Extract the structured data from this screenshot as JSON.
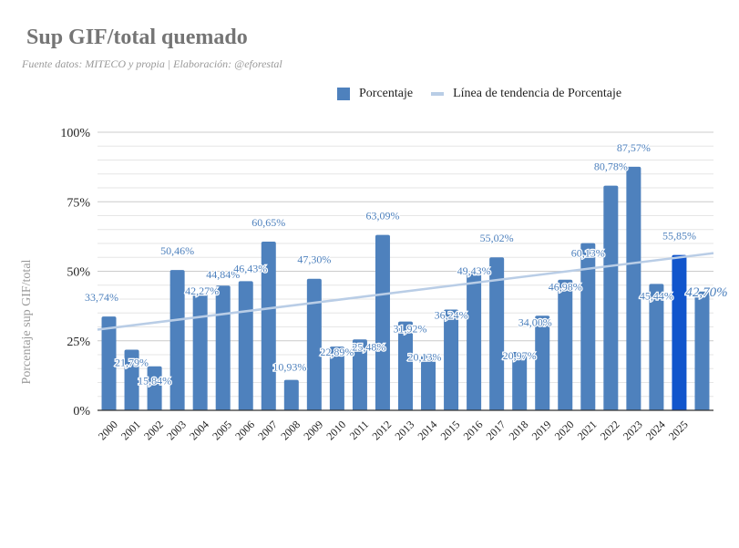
{
  "chart_data": {
    "type": "bar",
    "title": "Sup GIF/total quemado",
    "subtitle": "Fuente datos: MITECO y propia | Elaboración: @eforestal",
    "xlabel": "",
    "ylabel": "Porcentaje sup GIF/total",
    "ylim": [
      0,
      100
    ],
    "yticks": [
      "0%",
      "25%",
      "50%",
      "75%",
      "100%"
    ],
    "grid": true,
    "legend_position": "top",
    "legend": [
      "Porcentaje",
      "Línea de tendencia de Porcentaje"
    ],
    "categories": [
      "2000",
      "2001",
      "2002",
      "2003",
      "2004",
      "2005",
      "2006",
      "2007",
      "2008",
      "2009",
      "2010",
      "2011",
      "2012",
      "2013",
      "2014",
      "2015",
      "2016",
      "2017",
      "2018",
      "2019",
      "2020",
      "2021",
      "2022",
      "2023",
      "2024",
      "2025",
      ""
    ],
    "series": [
      {
        "name": "Porcentaje",
        "values": [
          33.74,
          21.79,
          15.84,
          50.46,
          42.27,
          44.84,
          46.43,
          60.65,
          10.93,
          47.3,
          22.89,
          25.48,
          63.09,
          31.92,
          20.13,
          36.24,
          49.43,
          55.02,
          20.97,
          34.0,
          46.98,
          60.13,
          80.78,
          87.57,
          45.44,
          55.85,
          42.7
        ],
        "labels": [
          "33,74%",
          "21,79%",
          "15,84%",
          "50,46%",
          "42,27%",
          "44,84%",
          "46,43%",
          "60,65%",
          "10,93%",
          "47,30%",
          "22,89%",
          "25,48%",
          "63,09%",
          "31,92%",
          "20,13%",
          "36,24%",
          "49,43%",
          "55,02%",
          "20,97%",
          "34,00%",
          "46,98%",
          "60,13%",
          "80,78%",
          "87,57%",
          "45,44%",
          "55,85%",
          "42,70%"
        ]
      }
    ],
    "trendline": {
      "name": "Línea de tendencia de Porcentaje",
      "start": 29.0,
      "end": 56.5
    },
    "colors": {
      "bar": "#4e81bd",
      "highlight_bar": "#1155cc",
      "trend": "#b9cde6",
      "label": "#4e81bd"
    },
    "highlight_index": 25,
    "italic_label_index": 26
  }
}
